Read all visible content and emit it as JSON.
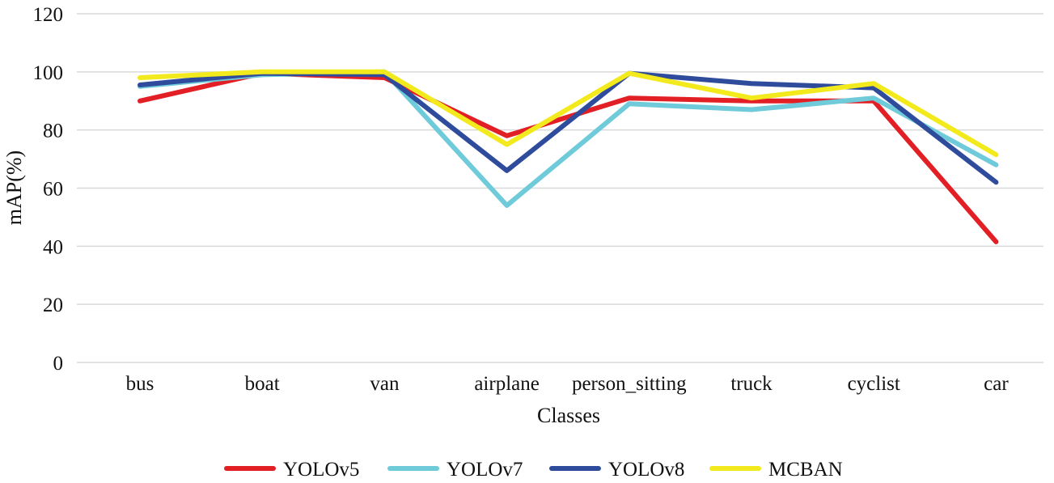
{
  "chart_data": {
    "type": "line",
    "title": "",
    "xlabel": "Classes",
    "ylabel": "mAP(%)",
    "ylim": [
      0,
      120
    ],
    "yticks": [
      0,
      20,
      40,
      60,
      80,
      100,
      120
    ],
    "grid": true,
    "legend_position": "bottom",
    "categories": [
      "bus",
      "boat",
      "van",
      "airplane",
      "person_sitting",
      "truck",
      "cyclist",
      "car"
    ],
    "series": [
      {
        "name": "YOLOv5",
        "color": "#e31f26",
        "values": [
          90,
          99.5,
          98,
          78,
          91,
          90,
          90,
          41.5
        ]
      },
      {
        "name": "YOLOv7",
        "color": "#6fcbd9",
        "values": [
          95,
          99,
          100,
          54,
          89,
          87,
          91,
          68
        ]
      },
      {
        "name": "YOLOv8",
        "color": "#2f4b9c",
        "values": [
          95.5,
          99.5,
          99,
          66,
          99.5,
          96,
          94.5,
          62
        ]
      },
      {
        "name": "MCBAN",
        "color": "#f2ea1c",
        "values": [
          98,
          100,
          100,
          75,
          99.5,
          91,
          96,
          71.5
        ]
      }
    ]
  }
}
